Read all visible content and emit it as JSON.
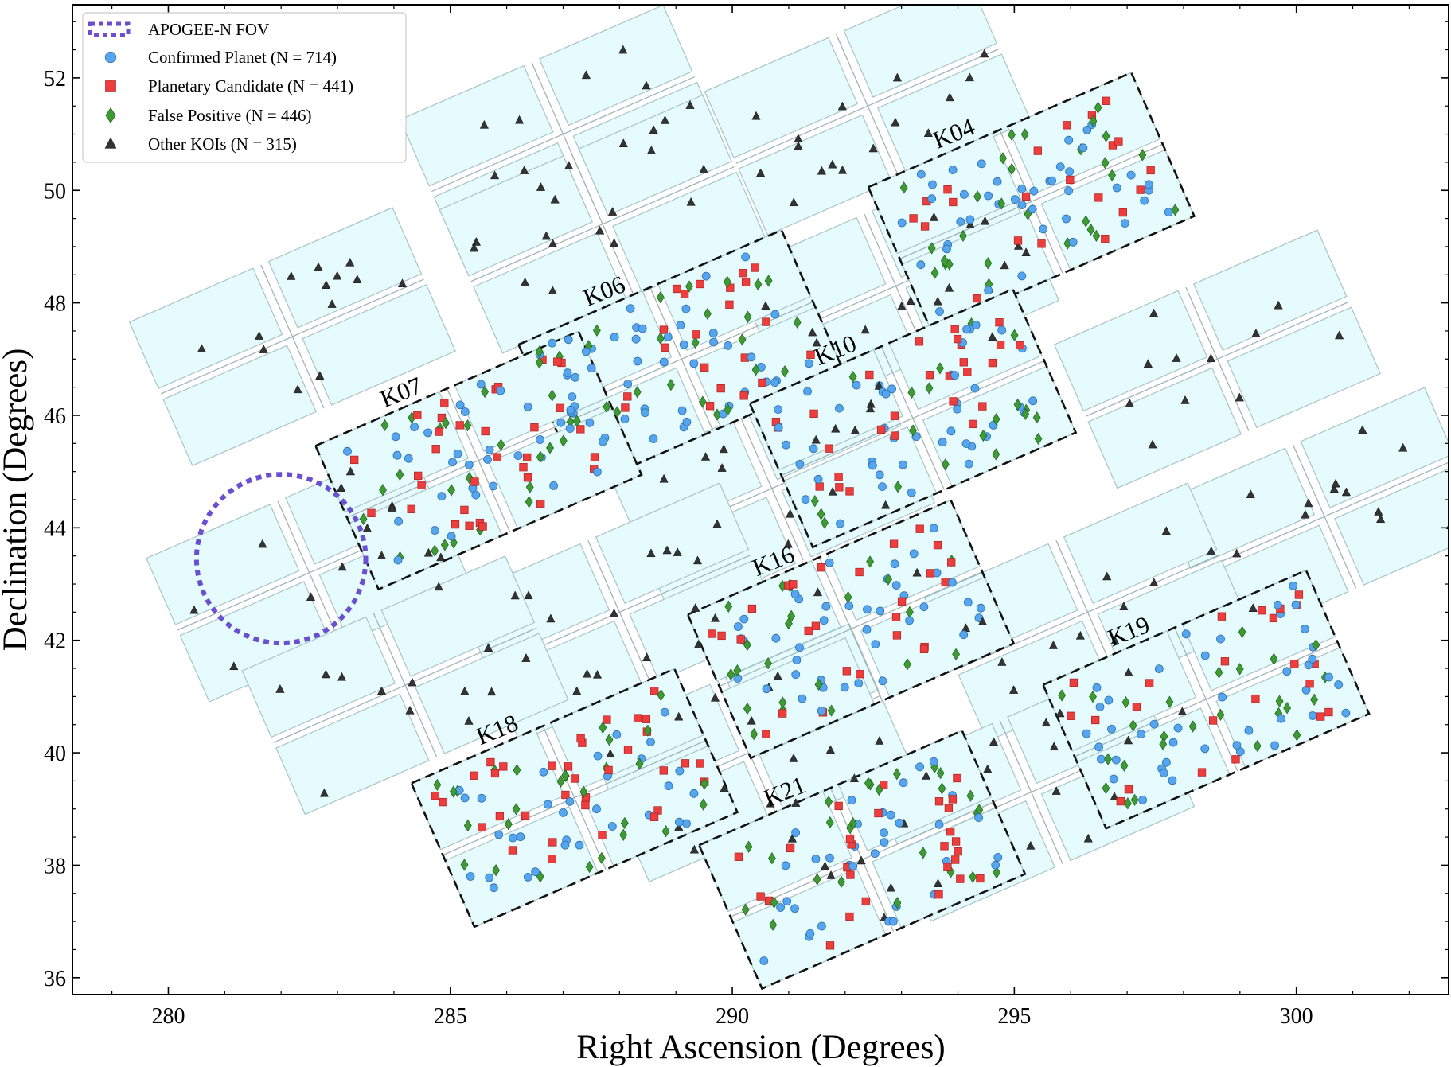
{
  "chart_data": {
    "type": "scatter",
    "title": "",
    "xlabel": "Right Ascension (Degrees)",
    "ylabel": "Declination (Degrees)",
    "xlim": [
      278.3,
      302.7
    ],
    "ylim": [
      35.7,
      53.3
    ],
    "x_reversed": false,
    "xticks": [
      280,
      285,
      290,
      295,
      300
    ],
    "yticks": [
      36,
      38,
      40,
      42,
      44,
      46,
      48,
      50,
      52
    ],
    "grid": false,
    "legend_position": "top-left",
    "legend": [
      {
        "key": "fov",
        "label": "APOGEE-N FOV",
        "marker": "dotted-circle",
        "color": "#6a4fd0"
      },
      {
        "key": "cp",
        "label": "Confirmed Planet (N = 714)",
        "marker": "circle",
        "color": "#55a6ee"
      },
      {
        "key": "pc",
        "label": "Planetary Candidate (N = 441)",
        "marker": "square",
        "color": "#ee3d3d"
      },
      {
        "key": "fp",
        "label": "False Positive (N = 446)",
        "marker": "diamond",
        "color": "#3e9a34"
      },
      {
        "key": "other",
        "label": "Other KOIs (N = 315)",
        "marker": "triangle",
        "color": "#333333"
      }
    ],
    "categories": [
      "Confirmed Planet",
      "Planetary Candidate",
      "False Positive",
      "Other KOIs"
    ],
    "counts": [
      714,
      441,
      446,
      315
    ],
    "apogee_fov": {
      "center_ra": 282.0,
      "center_dec": 43.45,
      "radius_deg": 1.5
    },
    "highlighted_fields": [
      {
        "name": "K04",
        "center_ra": 295.3,
        "center_dec": 49.8
      },
      {
        "name": "K06",
        "center_ra": 289.1,
        "center_dec": 47.0
      },
      {
        "name": "K07",
        "center_ra": 285.5,
        "center_dec": 45.2
      },
      {
        "name": "K10",
        "center_ra": 293.2,
        "center_dec": 45.95
      },
      {
        "name": "K16",
        "center_ra": 292.1,
        "center_dec": 42.2
      },
      {
        "name": "K18",
        "center_ra": 287.2,
        "center_dec": 39.2
      },
      {
        "name": "K19",
        "center_ra": 298.4,
        "center_dec": 40.95
      },
      {
        "name": "K21",
        "center_ra": 292.3,
        "center_dec": 38.1
      }
    ],
    "other_fields": [
      {
        "center_ra": 287.0,
        "center_dec": 51.0
      },
      {
        "center_ra": 282.2,
        "center_dec": 47.4
      },
      {
        "center_ra": 287.7,
        "center_dec": 49.4
      },
      {
        "center_ra": 292.4,
        "center_dec": 51.5
      },
      {
        "center_ra": 292.9,
        "center_dec": 48.3
      },
      {
        "center_ra": 298.6,
        "center_dec": 47.0
      },
      {
        "center_ra": 290.7,
        "center_dec": 44.7
      },
      {
        "center_ra": 300.5,
        "center_dec": 44.2
      },
      {
        "center_ra": 282.5,
        "center_dec": 43.2
      },
      {
        "center_ra": 288.0,
        "center_dec": 42.5
      },
      {
        "center_ra": 296.3,
        "center_dec": 42.5
      },
      {
        "center_ra": 284.2,
        "center_dec": 41.2
      },
      {
        "center_ra": 290.3,
        "center_dec": 40.0
      },
      {
        "center_ra": 295.3,
        "center_dec": 39.3
      }
    ]
  }
}
